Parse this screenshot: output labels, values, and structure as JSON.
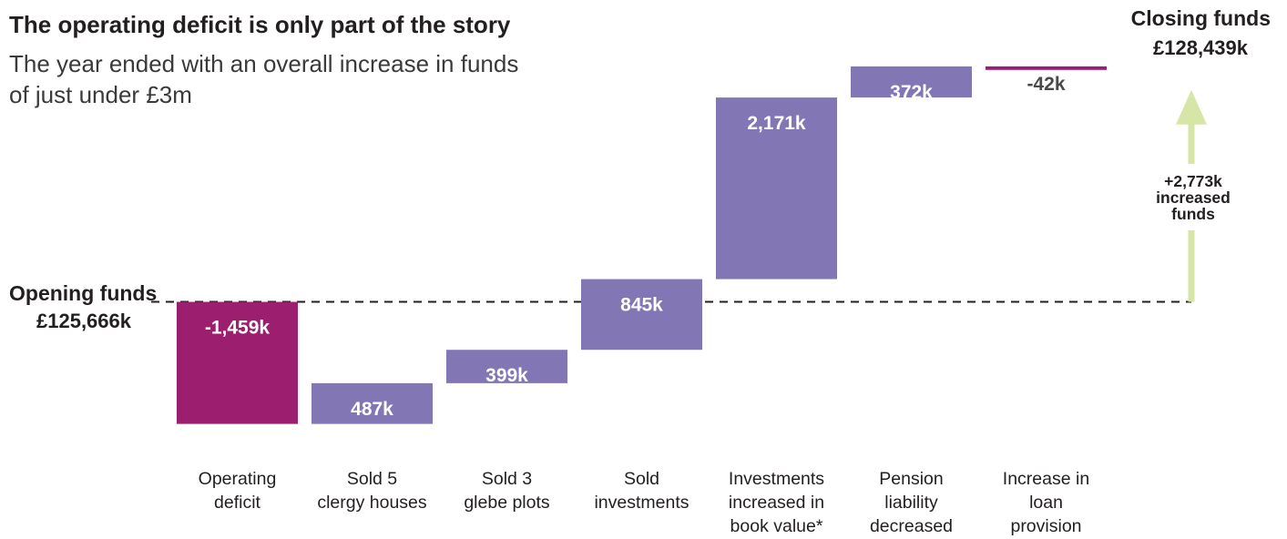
{
  "chart_data": {
    "type": "waterfall",
    "title": "The operating deficit is only part of the story",
    "subtitle_lines": [
      "The year ended with an overall increase in funds",
      "of just under £3m"
    ],
    "unit": "£k",
    "opening": {
      "label": "Opening funds",
      "value_label": "£125,666k",
      "value": 125666
    },
    "closing": {
      "label": "Closing funds",
      "value_label": "£128,439k",
      "value": 128439
    },
    "steps": [
      {
        "label_lines": [
          "Operating",
          "deficit"
        ],
        "value": -1459,
        "value_label": "-1,459k",
        "color": "#9b1f6e"
      },
      {
        "label_lines": [
          "Sold 5",
          "clergy houses"
        ],
        "value": 487,
        "value_label": "487k",
        "color": "#8276b5"
      },
      {
        "label_lines": [
          "Sold 3",
          "glebe plots"
        ],
        "value": 399,
        "value_label": "399k",
        "color": "#8276b5"
      },
      {
        "label_lines": [
          "Sold",
          "investments"
        ],
        "value": 845,
        "value_label": "845k",
        "color": "#8276b5"
      },
      {
        "label_lines": [
          "Investments",
          "increased in",
          "book value*"
        ],
        "value": 2171,
        "value_label": "2,171k",
        "color": "#8276b5"
      },
      {
        "label_lines": [
          "Pension",
          "liability",
          "decreased"
        ],
        "value": 372,
        "value_label": "372k",
        "color": "#8276b5"
      },
      {
        "label_lines": [
          "Increase in",
          "loan",
          "provision"
        ],
        "value": -42,
        "value_label": "-42k",
        "color": "#9b1f6e"
      }
    ],
    "change": {
      "value": 2773,
      "label_lines": [
        "+2,773k",
        "increased",
        "funds"
      ],
      "color": "#d6e6a6"
    },
    "colors": {
      "negative": "#9b1f6e",
      "positive": "#8276b5",
      "arrow": "#d6e6a6",
      "text": "#231f20"
    },
    "ylim": [
      123800,
      128600
    ]
  }
}
